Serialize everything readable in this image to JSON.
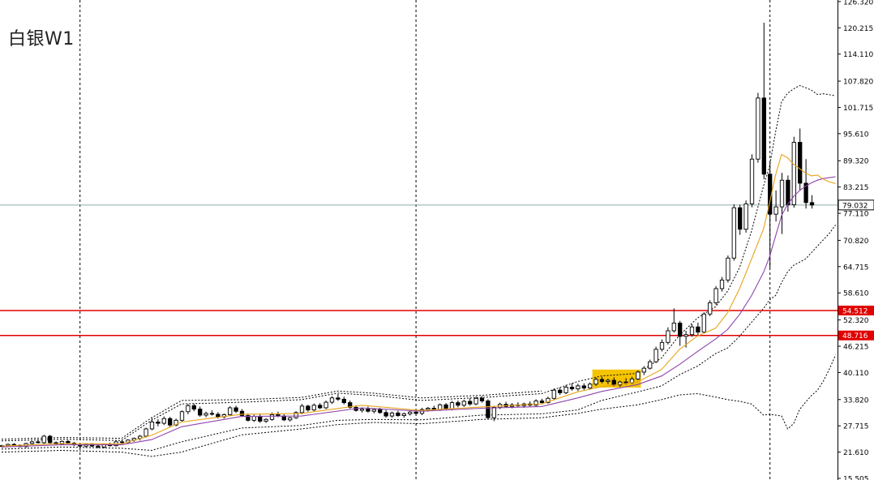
{
  "symbol_title": "白银W1",
  "colors": {
    "background": "#ffffff",
    "candle_outline": "#000000",
    "bull_fill": "#ffffff",
    "bear_fill": "#000000",
    "fast_ma": "#e8a317",
    "slow_ma": "#8e44ad",
    "bands": "#000000",
    "level_lines": "#e00000",
    "current_price_line": "#8fa8a8",
    "highlight": "#f5c400",
    "separators": "#000000"
  },
  "chart_data": {
    "type": "candlestick",
    "title": "白银W1",
    "ylim": [
      15.5,
      126.3
    ],
    "y_ticks": [
      {
        "value": 126.32,
        "label": "126.320"
      },
      {
        "value": 120.215,
        "label": "120.215"
      },
      {
        "value": 114.11,
        "label": "114.110"
      },
      {
        "value": 107.82,
        "label": "107.820"
      },
      {
        "value": 101.715,
        "label": "101.715"
      },
      {
        "value": 95.61,
        "label": "95.610"
      },
      {
        "value": 89.32,
        "label": "89.320"
      },
      {
        "value": 83.215,
        "label": "83.215"
      },
      {
        "value": 77.11,
        "label": "77.110"
      },
      {
        "value": 70.82,
        "label": "70.820"
      },
      {
        "value": 64.715,
        "label": "64.715"
      },
      {
        "value": 58.61,
        "label": "58.610"
      },
      {
        "value": 52.32,
        "label": "52.320"
      },
      {
        "value": 46.215,
        "label": "46.215"
      },
      {
        "value": 40.11,
        "label": "40.110"
      },
      {
        "value": 33.82,
        "label": "33.820"
      },
      {
        "value": 27.715,
        "label": "27.715"
      },
      {
        "value": 21.61,
        "label": "21.610"
      },
      {
        "value": 15.505,
        "label": "15.505"
      }
    ],
    "levels": [
      {
        "value": 54.512,
        "label": "54.512"
      },
      {
        "value": 48.716,
        "label": "48.716"
      }
    ],
    "current_price": {
      "value": 79.032,
      "label": "79.032"
    },
    "period_separators": [
      13,
      69,
      128
    ],
    "highlight_range": [
      99,
      106
    ],
    "candles": [
      [
        23.0,
        23.3,
        22.6,
        23.1
      ],
      [
        23.1,
        23.6,
        22.8,
        23.4
      ],
      [
        23.4,
        23.7,
        23.0,
        23.2
      ],
      [
        23.2,
        23.4,
        22.7,
        22.9
      ],
      [
        22.9,
        23.8,
        22.6,
        23.6
      ],
      [
        23.6,
        24.2,
        23.3,
        24.0
      ],
      [
        24.0,
        24.4,
        23.6,
        23.8
      ],
      [
        23.8,
        25.6,
        23.5,
        25.3
      ],
      [
        25.3,
        25.6,
        23.4,
        23.8
      ],
      [
        23.8,
        24.1,
        23.3,
        23.5
      ],
      [
        23.5,
        24.3,
        23.2,
        24.1
      ],
      [
        24.1,
        24.4,
        23.5,
        23.7
      ],
      [
        23.7,
        24.0,
        23.0,
        23.3
      ],
      [
        23.3,
        23.6,
        22.7,
        23.0
      ],
      [
        23.0,
        23.5,
        22.6,
        23.4
      ],
      [
        23.4,
        23.7,
        22.8,
        23.0
      ],
      [
        23.0,
        23.4,
        22.5,
        22.8
      ],
      [
        22.8,
        23.6,
        22.5,
        23.4
      ],
      [
        23.4,
        23.8,
        22.9,
        23.1
      ],
      [
        23.1,
        24.3,
        22.9,
        24.0
      ],
      [
        24.0,
        24.5,
        23.6,
        23.9
      ],
      [
        23.9,
        24.6,
        23.6,
        24.4
      ],
      [
        24.4,
        25.0,
        24.0,
        24.8
      ],
      [
        24.8,
        25.6,
        24.3,
        25.3
      ],
      [
        25.3,
        27.3,
        25.0,
        27.0
      ],
      [
        27.0,
        29.5,
        26.7,
        28.6
      ],
      [
        28.6,
        29.3,
        27.6,
        28.3
      ],
      [
        28.3,
        29.9,
        27.9,
        29.4
      ],
      [
        29.4,
        29.8,
        27.5,
        27.9
      ],
      [
        27.9,
        29.4,
        27.6,
        29.0
      ],
      [
        29.0,
        31.3,
        28.7,
        31.0
      ],
      [
        31.0,
        32.8,
        30.4,
        32.4
      ],
      [
        32.4,
        32.9,
        31.1,
        31.6
      ],
      [
        31.6,
        32.2,
        29.8,
        30.2
      ],
      [
        30.2,
        31.0,
        29.7,
        30.6
      ],
      [
        30.6,
        31.3,
        30.1,
        30.4
      ],
      [
        30.4,
        30.9,
        29.4,
        29.8
      ],
      [
        29.8,
        30.6,
        29.4,
        30.3
      ],
      [
        30.3,
        32.3,
        30.0,
        31.9
      ],
      [
        31.9,
        32.4,
        30.7,
        31.1
      ],
      [
        31.1,
        31.6,
        29.8,
        30.1
      ],
      [
        30.1,
        30.6,
        28.7,
        29.0
      ],
      [
        29.0,
        30.3,
        28.6,
        29.9
      ],
      [
        29.9,
        30.4,
        28.4,
        28.8
      ],
      [
        28.8,
        29.5,
        28.4,
        29.2
      ],
      [
        29.2,
        30.8,
        28.9,
        30.3
      ],
      [
        30.3,
        31.0,
        29.7,
        30.0
      ],
      [
        30.0,
        30.4,
        28.8,
        29.1
      ],
      [
        29.1,
        29.8,
        28.7,
        29.6
      ],
      [
        29.6,
        31.1,
        29.3,
        30.8
      ],
      [
        30.8,
        32.8,
        30.4,
        32.3
      ],
      [
        32.3,
        32.6,
        31.0,
        31.4
      ],
      [
        31.4,
        32.9,
        31.1,
        32.5
      ],
      [
        32.5,
        33.0,
        31.6,
        31.9
      ],
      [
        31.9,
        33.6,
        31.6,
        33.2
      ],
      [
        33.2,
        34.6,
        32.8,
        34.2
      ],
      [
        34.2,
        35.1,
        33.5,
        33.9
      ],
      [
        33.9,
        34.5,
        32.7,
        33.1
      ],
      [
        33.1,
        33.6,
        31.7,
        32.0
      ],
      [
        32.0,
        32.5,
        31.0,
        31.3
      ],
      [
        31.3,
        32.0,
        30.8,
        31.6
      ],
      [
        31.6,
        32.2,
        30.8,
        31.1
      ],
      [
        31.1,
        31.8,
        30.6,
        31.5
      ],
      [
        31.5,
        31.9,
        30.5,
        30.8
      ],
      [
        30.8,
        31.4,
        29.6,
        30.0
      ],
      [
        30.0,
        31.0,
        29.6,
        30.7
      ],
      [
        30.7,
        31.2,
        29.8,
        30.1
      ],
      [
        30.1,
        30.8,
        29.6,
        30.5
      ],
      [
        30.5,
        31.2,
        30.1,
        30.9
      ],
      [
        30.9,
        31.6,
        30.3,
        30.6
      ],
      [
        30.6,
        31.9,
        30.2,
        31.5
      ],
      [
        31.5,
        32.1,
        31.0,
        31.8
      ],
      [
        31.8,
        32.4,
        31.2,
        31.5
      ],
      [
        31.5,
        32.9,
        31.2,
        32.6
      ],
      [
        32.6,
        33.0,
        31.3,
        31.7
      ],
      [
        31.7,
        33.5,
        31.3,
        33.1
      ],
      [
        33.1,
        33.6,
        32.0,
        32.5
      ],
      [
        32.5,
        33.8,
        32.1,
        33.4
      ],
      [
        33.4,
        34.2,
        32.4,
        32.8
      ],
      [
        32.8,
        34.5,
        32.5,
        34.1
      ],
      [
        34.1,
        34.6,
        33.1,
        33.5
      ],
      [
        33.5,
        33.9,
        29.2,
        29.6
      ],
      [
        29.6,
        32.3,
        28.8,
        32.0
      ],
      [
        32.0,
        33.1,
        31.6,
        32.7
      ],
      [
        32.7,
        33.3,
        31.9,
        32.2
      ],
      [
        32.2,
        33.0,
        31.8,
        32.6
      ],
      [
        32.6,
        33.2,
        32.0,
        32.4
      ],
      [
        32.4,
        33.1,
        31.9,
        32.8
      ],
      [
        32.8,
        33.4,
        32.2,
        32.5
      ],
      [
        32.5,
        33.9,
        32.2,
        33.5
      ],
      [
        33.5,
        34.0,
        32.8,
        33.1
      ],
      [
        33.1,
        34.5,
        32.9,
        34.1
      ],
      [
        34.1,
        36.4,
        33.8,
        36.0
      ],
      [
        36.0,
        36.6,
        34.9,
        35.4
      ],
      [
        35.4,
        37.2,
        35.1,
        36.7
      ],
      [
        36.7,
        37.6,
        35.9,
        36.3
      ],
      [
        36.3,
        37.5,
        35.8,
        37.0
      ],
      [
        37.0,
        37.6,
        36.0,
        36.5
      ],
      [
        36.5,
        37.8,
        36.1,
        37.4
      ],
      [
        37.4,
        38.9,
        37.0,
        38.5
      ],
      [
        38.5,
        39.1,
        37.6,
        38.0
      ],
      [
        38.0,
        38.7,
        37.4,
        38.3
      ],
      [
        38.3,
        39.0,
        36.9,
        37.2
      ],
      [
        37.2,
        38.2,
        36.8,
        37.9
      ],
      [
        37.9,
        38.8,
        37.3,
        37.7
      ],
      [
        37.7,
        39.1,
        37.4,
        38.6
      ],
      [
        38.6,
        40.6,
        38.3,
        40.2
      ],
      [
        40.2,
        41.6,
        39.5,
        41.1
      ],
      [
        41.1,
        43.1,
        40.8,
        42.6
      ],
      [
        42.6,
        46.1,
        42.3,
        45.5
      ],
      [
        45.5,
        47.8,
        45.0,
        47.1
      ],
      [
        47.1,
        50.6,
        46.6,
        49.8
      ],
      [
        49.8,
        55.0,
        49.4,
        51.6
      ],
      [
        51.6,
        52.1,
        46.3,
        48.5
      ],
      [
        48.5,
        49.8,
        45.9,
        48.9
      ],
      [
        48.9,
        51.3,
        48.4,
        50.7
      ],
      [
        50.7,
        51.7,
        48.8,
        49.5
      ],
      [
        49.5,
        54.1,
        49.2,
        53.7
      ],
      [
        53.7,
        56.9,
        53.2,
        56.3
      ],
      [
        56.3,
        60.2,
        55.8,
        59.6
      ],
      [
        59.6,
        62.3,
        58.9,
        61.6
      ],
      [
        61.6,
        67.3,
        61.0,
        66.7
      ],
      [
        66.7,
        79.2,
        66.1,
        78.4
      ],
      [
        78.4,
        79.1,
        72.1,
        73.4
      ],
      [
        73.4,
        80.1,
        72.6,
        79.3
      ],
      [
        79.3,
        90.8,
        78.5,
        89.7
      ],
      [
        89.7,
        105.1,
        88.9,
        103.9
      ],
      [
        103.9,
        121.4,
        85.0,
        86.2
      ],
      [
        86.2,
        88.9,
        64.5,
        76.9
      ],
      [
        76.9,
        82.4,
        75.2,
        78.6
      ],
      [
        78.6,
        86.5,
        72.3,
        84.8
      ],
      [
        84.8,
        85.9,
        77.5,
        79.1
      ],
      [
        79.1,
        94.9,
        78.4,
        93.6
      ],
      [
        93.6,
        96.8,
        82.5,
        84.1
      ],
      [
        84.1,
        89.7,
        78.2,
        79.6
      ],
      [
        79.6,
        81.3,
        78.2,
        79.032
      ]
    ],
    "ma_fast": [
      [
        0,
        23.0
      ],
      [
        10,
        23.6
      ],
      [
        20,
        23.5
      ],
      [
        25,
        25.5
      ],
      [
        30,
        28.6
      ],
      [
        40,
        30.4
      ],
      [
        50,
        30.6
      ],
      [
        60,
        32.5
      ],
      [
        70,
        31.3
      ],
      [
        80,
        32.1
      ],
      [
        90,
        32.8
      ],
      [
        96,
        35.6
      ],
      [
        100,
        36.8
      ],
      [
        106,
        37.9
      ],
      [
        110,
        40.8
      ],
      [
        113,
        45.5
      ],
      [
        116,
        48.6
      ],
      [
        119,
        50.4
      ],
      [
        121,
        54.0
      ],
      [
        123,
        59.6
      ],
      [
        125,
        66.5
      ],
      [
        127,
        73.5
      ],
      [
        128,
        79.5
      ],
      [
        129,
        86.0
      ],
      [
        130,
        90.8
      ],
      [
        131,
        90.0
      ],
      [
        132,
        88.5
      ],
      [
        133,
        87.5
      ],
      [
        134,
        86.4
      ],
      [
        135,
        85.8
      ],
      [
        136,
        86.0
      ],
      [
        137,
        85.0
      ],
      [
        138,
        84.4
      ],
      [
        139,
        84.0
      ]
    ],
    "ma_slow": [
      [
        0,
        22.8
      ],
      [
        10,
        23.3
      ],
      [
        20,
        23.3
      ],
      [
        25,
        24.5
      ],
      [
        30,
        27.5
      ],
      [
        40,
        29.9
      ],
      [
        50,
        30.0
      ],
      [
        60,
        31.9
      ],
      [
        70,
        31.1
      ],
      [
        80,
        31.8
      ],
      [
        90,
        32.2
      ],
      [
        96,
        34.2
      ],
      [
        100,
        35.7
      ],
      [
        106,
        37.3
      ],
      [
        110,
        39.3
      ],
      [
        113,
        42.0
      ],
      [
        116,
        45.0
      ],
      [
        119,
        47.9
      ],
      [
        121,
        50.1
      ],
      [
        123,
        53.6
      ],
      [
        125,
        58.0
      ],
      [
        127,
        63.4
      ],
      [
        128,
        67.0
      ],
      [
        129,
        71.8
      ],
      [
        130,
        76.6
      ],
      [
        131,
        79.2
      ],
      [
        132,
        81.0
      ],
      [
        133,
        82.4
      ],
      [
        134,
        83.4
      ],
      [
        135,
        84.2
      ],
      [
        136,
        84.8
      ],
      [
        137,
        85.2
      ],
      [
        138,
        85.4
      ],
      [
        139,
        85.6
      ]
    ],
    "band_upper": [
      [
        0,
        24.2
      ],
      [
        10,
        24.6
      ],
      [
        20,
        24.3
      ],
      [
        25,
        29.0
      ],
      [
        30,
        32.8
      ],
      [
        40,
        33.2
      ],
      [
        50,
        33.8
      ],
      [
        56,
        35.3
      ],
      [
        62,
        34.8
      ],
      [
        70,
        33.6
      ],
      [
        80,
        34.3
      ],
      [
        90,
        35.2
      ],
      [
        96,
        38.0
      ],
      [
        100,
        39.3
      ],
      [
        106,
        39.9
      ],
      [
        110,
        43.5
      ],
      [
        113,
        48.8
      ],
      [
        116,
        52.8
      ],
      [
        119,
        55.4
      ],
      [
        121,
        59.0
      ],
      [
        123,
        64.5
      ],
      [
        125,
        73.0
      ],
      [
        127,
        83.5
      ],
      [
        128,
        88.0
      ],
      [
        129,
        96.0
      ],
      [
        130,
        103.0
      ],
      [
        131,
        105.0
      ],
      [
        132,
        106.0
      ],
      [
        133,
        106.8
      ],
      [
        134,
        106.3
      ],
      [
        135,
        105.7
      ],
      [
        136,
        104.7
      ],
      [
        137,
        104.9
      ],
      [
        139,
        104.4
      ]
    ],
    "band_lower": [
      [
        0,
        22.3
      ],
      [
        10,
        22.8
      ],
      [
        20,
        22.5
      ],
      [
        25,
        22.0
      ],
      [
        30,
        24.0
      ],
      [
        40,
        27.2
      ],
      [
        50,
        27.8
      ],
      [
        56,
        29.0
      ],
      [
        62,
        29.2
      ],
      [
        70,
        29.1
      ],
      [
        80,
        30.2
      ],
      [
        90,
        30.5
      ],
      [
        96,
        31.4
      ],
      [
        100,
        33.6
      ],
      [
        106,
        35.6
      ],
      [
        110,
        37.0
      ],
      [
        113,
        39.6
      ],
      [
        116,
        41.6
      ],
      [
        119,
        44.5
      ],
      [
        121,
        45.8
      ],
      [
        123,
        48.5
      ],
      [
        125,
        51.8
      ],
      [
        127,
        55.0
      ],
      [
        128,
        57.0
      ],
      [
        129,
        58.0
      ],
      [
        130,
        61.0
      ],
      [
        131,
        63.5
      ],
      [
        132,
        65.0
      ],
      [
        134,
        66.5
      ],
      [
        136,
        69.5
      ],
      [
        138,
        72.5
      ],
      [
        139,
        74.4
      ]
    ],
    "band_outer_upper": [
      [
        0,
        24.6
      ],
      [
        10,
        25.0
      ],
      [
        20,
        24.8
      ],
      [
        25,
        29.6
      ],
      [
        30,
        33.6
      ],
      [
        40,
        33.8
      ],
      [
        50,
        34.3
      ],
      [
        56,
        35.8
      ],
      [
        62,
        35.3
      ],
      [
        70,
        34.2
      ],
      [
        80,
        34.8
      ],
      [
        90,
        35.8
      ]
    ],
    "band_outer_lower": [
      [
        0,
        21.6
      ],
      [
        10,
        22.0
      ],
      [
        20,
        21.6
      ],
      [
        25,
        20.6
      ],
      [
        30,
        21.6
      ],
      [
        40,
        25.6
      ],
      [
        50,
        27.0
      ],
      [
        56,
        28.0
      ],
      [
        62,
        28.5
      ],
      [
        70,
        28.2
      ],
      [
        80,
        29.2
      ],
      [
        90,
        29.6
      ],
      [
        96,
        30.6
      ],
      [
        100,
        31.6
      ],
      [
        106,
        32.6
      ],
      [
        110,
        33.8
      ],
      [
        113,
        34.9
      ],
      [
        116,
        35.2
      ],
      [
        119,
        34.4
      ],
      [
        121,
        33.8
      ],
      [
        123,
        33.4
      ],
      [
        125,
        32.8
      ],
      [
        127,
        30.2
      ],
      [
        128,
        30.4
      ],
      [
        130,
        30.0
      ],
      [
        131,
        27.0
      ],
      [
        132,
        28.2
      ],
      [
        133,
        31.5
      ],
      [
        134,
        33.2
      ],
      [
        135,
        34.8
      ],
      [
        136,
        36.0
      ],
      [
        137,
        38.2
      ],
      [
        138,
        41.0
      ],
      [
        139,
        44.2
      ]
    ]
  }
}
